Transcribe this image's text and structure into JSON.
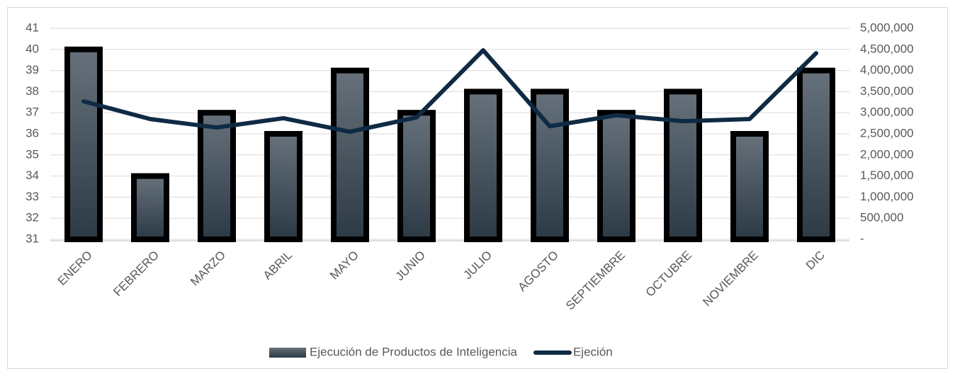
{
  "chart_data": {
    "type": "bar",
    "categories": [
      "ENERO",
      "FEBRERO",
      "MARZO",
      "ABRIL",
      "MAYO",
      "JUNIO",
      "JULIO",
      "AGOSTO",
      "SEPTIEMBRE",
      "OCTUBRE",
      "NOVIEMBRE",
      "DIC"
    ],
    "series": [
      {
        "name": "Ejecución de Productos de Inteligencia",
        "type": "bar",
        "color": "#4a5661",
        "values": [
          40,
          34,
          37,
          36,
          39,
          37,
          38,
          38,
          37,
          38,
          36,
          39
        ]
      },
      {
        "name": "Ejeción",
        "type": "line",
        "axis": "y2",
        "color": "#0f2a44",
        "values": [
          3270000,
          2850000,
          2650000,
          2870000,
          2550000,
          2890000,
          4480000,
          2680000,
          2940000,
          2800000,
          2850000,
          4410000
        ]
      }
    ],
    "ylim": [
      31,
      41
    ],
    "yticks": [
      31,
      32,
      33,
      34,
      35,
      36,
      37,
      38,
      39,
      40,
      41
    ],
    "y2lim": [
      0,
      5000000
    ],
    "y2ticks": [
      {
        "value": 0,
        "label": "-"
      },
      {
        "value": 500000,
        "label": "500,000"
      },
      {
        "value": 1000000,
        "label": "1,000,000"
      },
      {
        "value": 1500000,
        "label": "1,500,000"
      },
      {
        "value": 2000000,
        "label": "2,000,000"
      },
      {
        "value": 2500000,
        "label": "2,500,000"
      },
      {
        "value": 3000000,
        "label": "3,000,000"
      },
      {
        "value": 3500000,
        "label": "3,500,000"
      },
      {
        "value": 4000000,
        "label": "4,000,000"
      },
      {
        "value": 4500000,
        "label": "4,500,000"
      },
      {
        "value": 5000000,
        "label": "5,000,000"
      }
    ],
    "grid": true,
    "legend": "bottom"
  }
}
